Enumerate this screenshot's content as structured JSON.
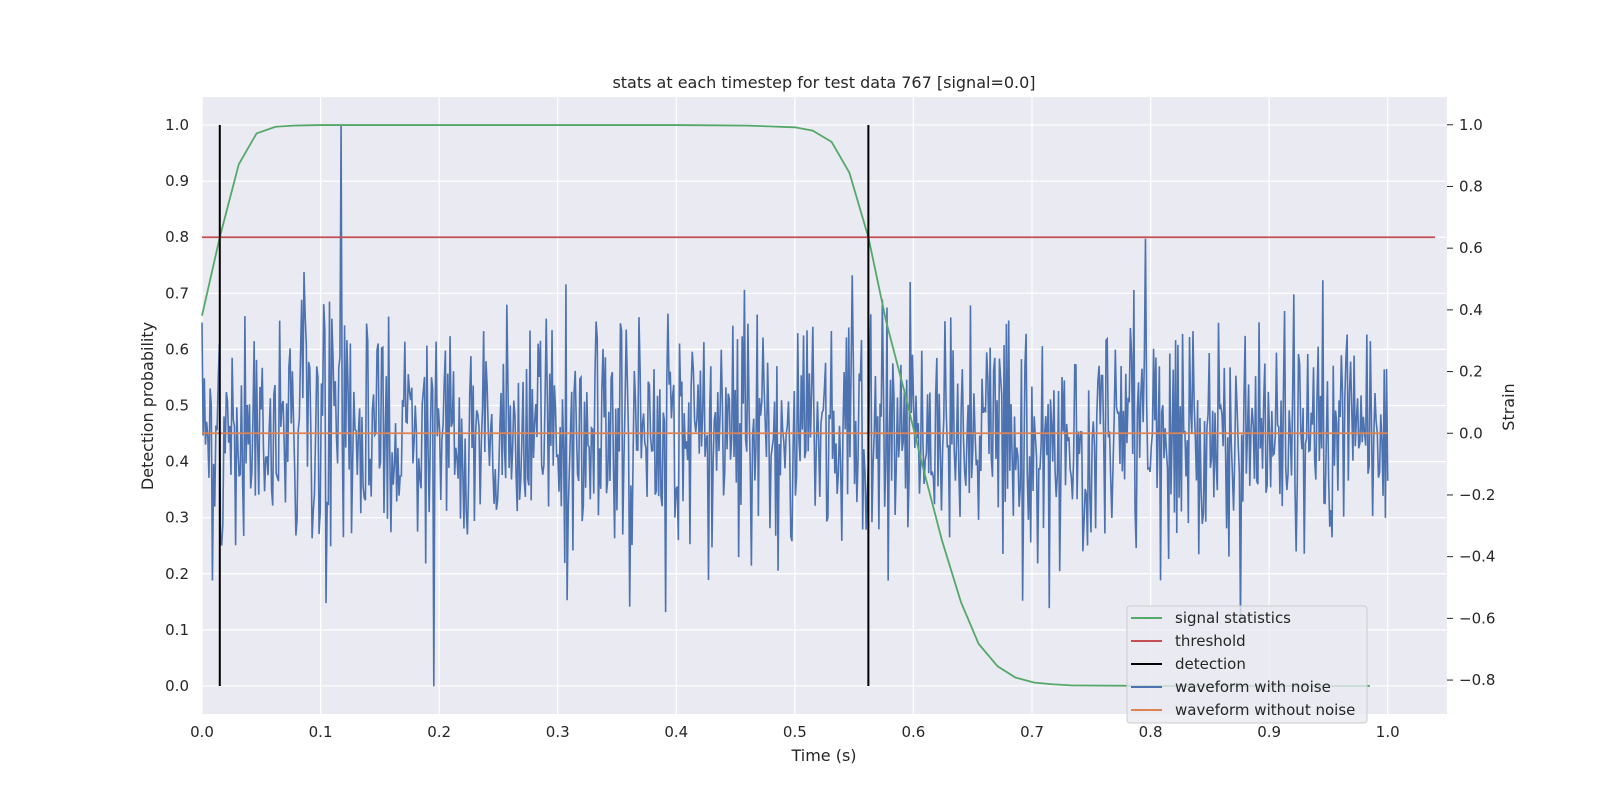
{
  "chart_data": {
    "type": "line",
    "title": "stats at each timestep for test data 767 [signal=0.0]",
    "xlabel": "Time (s)",
    "ylabel": "Detection probability",
    "y2label": "Strain",
    "xlim": [
      0.0,
      1.05
    ],
    "ylim": [
      -0.05,
      1.05
    ],
    "y2lim": [
      -0.91,
      1.09
    ],
    "xticks": [
      "0.0",
      "0.1",
      "0.2",
      "0.3",
      "0.4",
      "0.5",
      "0.6",
      "0.7",
      "0.8",
      "0.9",
      "1.0"
    ],
    "yticks": [
      "0.0",
      "0.1",
      "0.2",
      "0.3",
      "0.4",
      "0.5",
      "0.6",
      "0.7",
      "0.8",
      "0.9",
      "1.0"
    ],
    "y2ticks": [
      "−0.8",
      "−0.6",
      "−0.4",
      "−0.2",
      "0.0",
      "0.2",
      "0.4",
      "0.6",
      "0.8",
      "1.0"
    ],
    "grid": true,
    "legend_position": "lower-right",
    "legend": [
      {
        "label": "signal statistics",
        "color": "#55a868"
      },
      {
        "label": "threshold",
        "color": "#c44e52"
      },
      {
        "label": "detection",
        "color": "#000000"
      },
      {
        "label": "waveform with noise",
        "color": "#4c72b0"
      },
      {
        "label": "waveform without noise",
        "color": "#dd8452"
      }
    ],
    "series": [
      {
        "name": "signal statistics",
        "axis": "left",
        "color": "#55a868",
        "x": [
          0.0,
          0.015,
          0.031,
          0.046,
          0.062,
          0.077,
          0.1,
          0.2,
          0.3,
          0.4,
          0.46,
          0.5,
          0.515,
          0.531,
          0.546,
          0.562,
          0.577,
          0.593,
          0.608,
          0.624,
          0.64,
          0.655,
          0.671,
          0.686,
          0.702,
          0.717,
          0.733,
          0.8,
          0.9,
          0.985
        ],
        "y": [
          0.66,
          0.8,
          0.93,
          0.985,
          0.997,
          0.999,
          1.0,
          1.0,
          1.0,
          1.0,
          0.999,
          0.996,
          0.99,
          0.97,
          0.915,
          0.8,
          0.65,
          0.52,
          0.39,
          0.26,
          0.15,
          0.075,
          0.035,
          0.015,
          0.006,
          0.003,
          0.001,
          0.0,
          0.0,
          0.0
        ]
      },
      {
        "name": "threshold",
        "axis": "left",
        "color": "#c44e52",
        "x": [
          0.0,
          1.04
        ],
        "y": [
          0.8,
          0.8
        ]
      },
      {
        "name": "waveform without noise",
        "axis": "right",
        "color": "#dd8452",
        "x": [
          0.0,
          1.0
        ],
        "y": [
          0.0,
          0.0
        ]
      }
    ],
    "detections": [
      {
        "x": 0.015,
        "y_range": [
          0.0,
          1.0
        ]
      },
      {
        "x": 0.562,
        "y_range": [
          0.0,
          1.0
        ]
      }
    ],
    "noise_waveform": {
      "name": "waveform with noise",
      "axis": "right",
      "color": "#4c72b0",
      "x_range": [
        0.0,
        1.0
      ],
      "samples": 1024,
      "std": 0.19,
      "min": -0.82,
      "max": 1.0
    }
  }
}
